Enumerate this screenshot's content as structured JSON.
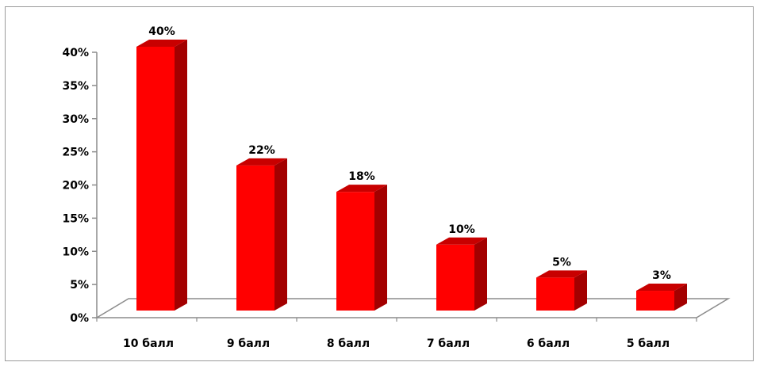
{
  "chart_data": {
    "type": "bar",
    "title": "",
    "xlabel": "",
    "ylabel": "",
    "categories": [
      "10 балл",
      "9 балл",
      "8 балл",
      "7 балл",
      "6 балл",
      "5 балл"
    ],
    "values": [
      40,
      22,
      18,
      10,
      5,
      3
    ],
    "data_labels": [
      "40%",
      "22%",
      "18%",
      "10%",
      "5%",
      "3%"
    ],
    "ylim": [
      0,
      40
    ],
    "yticks": [
      0,
      5,
      10,
      15,
      20,
      25,
      30,
      35,
      40
    ],
    "ytick_labels": [
      "0%",
      "5%",
      "10%",
      "15%",
      "20%",
      "25%",
      "30%",
      "35%",
      "40%"
    ],
    "grid": false,
    "legend": "none",
    "style": "3d-column",
    "colors": {
      "bar_front": "#ff0000",
      "bar_side": "#a30000",
      "bar_top": "#c80000",
      "axis": "#8c8c8c"
    }
  }
}
